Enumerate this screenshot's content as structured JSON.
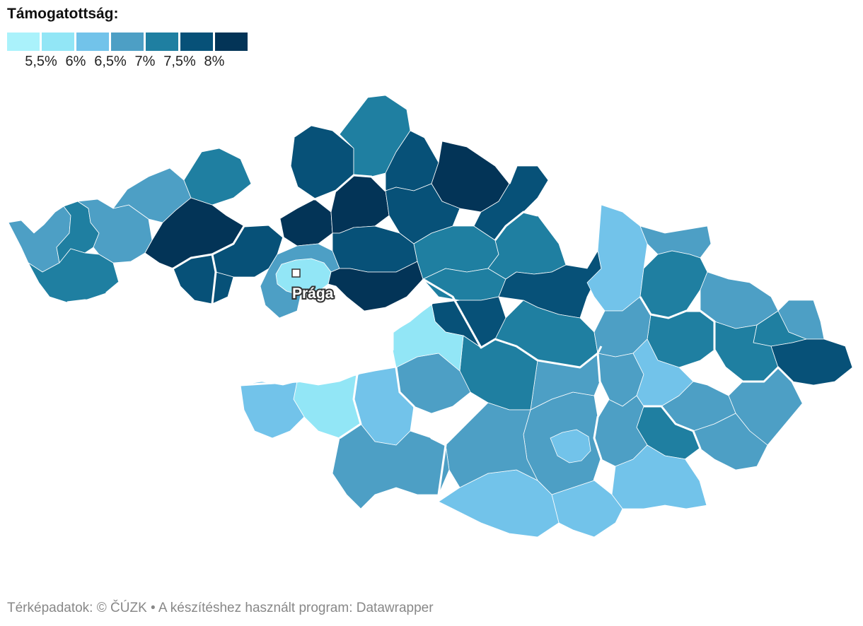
{
  "legend": {
    "title": "Támogatottság:",
    "colors": [
      "#aaf2fb",
      "#92e6f6",
      "#72c3ea",
      "#4d9fc5",
      "#1f7fa1",
      "#075178",
      "#033457"
    ],
    "ticks": [
      "5,5%",
      "6%",
      "6,5%",
      "7%",
      "7,5%",
      "8%"
    ]
  },
  "map": {
    "city_label": "Prága",
    "regions": [
      {
        "fill": 3
      },
      {
        "fill": 4
      },
      {
        "fill": 3
      },
      {
        "fill": 3
      },
      {
        "fill": 4
      },
      {
        "fill": 6
      },
      {
        "fill": 4
      },
      {
        "fill": 5
      },
      {
        "fill": 5
      },
      {
        "fill": 6
      },
      {
        "fill": 6
      },
      {
        "fill": 5
      },
      {
        "fill": 1
      },
      {
        "fill": 3
      },
      {
        "fill": 5
      },
      {
        "fill": 6
      },
      {
        "fill": 4
      },
      {
        "fill": 5
      },
      {
        "fill": 6
      },
      {
        "fill": 5
      },
      {
        "fill": 4
      },
      {
        "fill": 5
      },
      {
        "fill": 4
      },
      {
        "fill": 4
      },
      {
        "fill": 5
      },
      {
        "fill": 2
      },
      {
        "fill": 5
      },
      {
        "fill": 4
      },
      {
        "fill": 3
      },
      {
        "fill": 4
      },
      {
        "fill": 3
      },
      {
        "fill": 3
      },
      {
        "fill": 4
      },
      {
        "fill": 5
      },
      {
        "fill": 4
      },
      {
        "fill": 3
      },
      {
        "fill": 4
      },
      {
        "fill": 3
      },
      {
        "fill": 3
      },
      {
        "fill": 2
      },
      {
        "fill": 3
      },
      {
        "fill": 3
      },
      {
        "fill": 4
      },
      {
        "fill": 3
      },
      {
        "fill": 2
      },
      {
        "fill": 2
      },
      {
        "fill": 3
      },
      {
        "fill": 3
      },
      {
        "fill": 4
      },
      {
        "fill": 2
      },
      {
        "fill": 3
      },
      {
        "fill": 2
      },
      {
        "fill": 3
      },
      {
        "fill": 1
      },
      {
        "fill": 2
      },
      {
        "fill": 3
      },
      {
        "fill": 1
      },
      {
        "fill": 2
      }
    ]
  },
  "footer": "Térképadatok: © ČÚZK  • A készítéshez használt program: Datawrapper"
}
